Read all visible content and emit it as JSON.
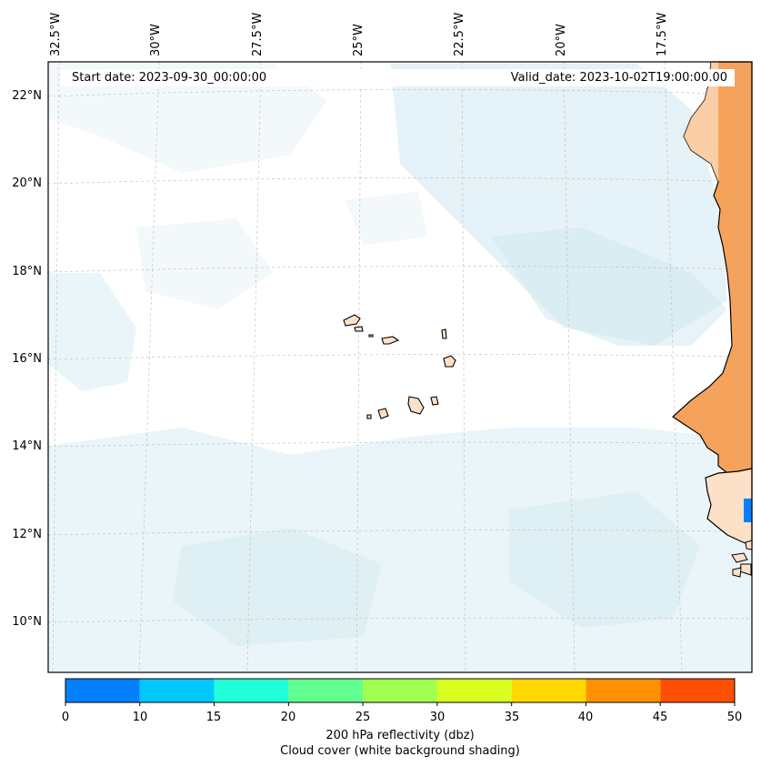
{
  "header": {
    "start_date": "Start date: 2023-09-30_00:00:00",
    "valid_date": "Valid_date: 2023-10-02T19:00:00.00"
  },
  "axes": {
    "lat_labels": [
      "22°N",
      "20°N",
      "18°N",
      "16°N",
      "14°N",
      "12°N",
      "10°N"
    ],
    "lon_labels": [
      "32.5°W",
      "30°W",
      "27.5°W",
      "25°W",
      "22.5°W",
      "20°W",
      "17.5°W"
    ]
  },
  "colorbar": {
    "ticks": [
      "0",
      "10",
      "15",
      "20",
      "25",
      "30",
      "35",
      "40",
      "45",
      "50"
    ],
    "colors": [
      "#0080ff",
      "#00c8ff",
      "#20ffd8",
      "#60ff90",
      "#a0ff50",
      "#d8ff20",
      "#ffd800",
      "#ff9000",
      "#ff5000"
    ],
    "label_line1": "200 hPa reflectivity (dbz)",
    "label_line2": "Cloud cover (white background shading)"
  },
  "colors": {
    "land": "#fde0c8",
    "high_reflectivity_land": "#f5a35c",
    "cloud_shading": "#cfe8f0",
    "coastline": "#000000",
    "radar_echo": "#0080ff"
  }
}
